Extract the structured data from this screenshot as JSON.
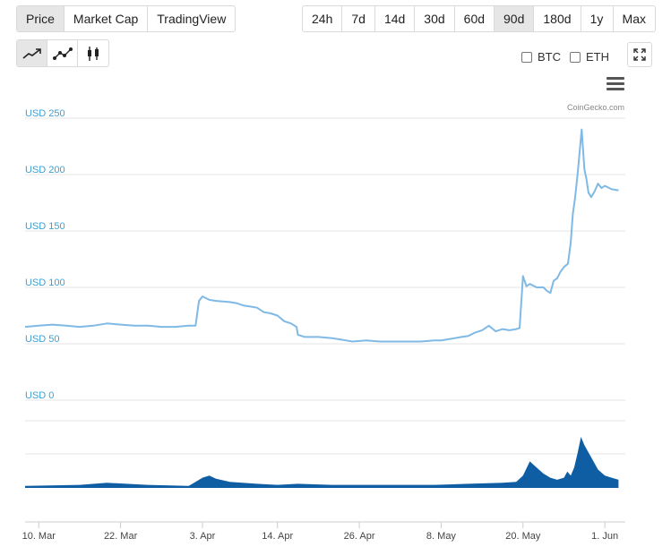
{
  "view_tabs": [
    {
      "label": "Price",
      "active": true
    },
    {
      "label": "Market Cap",
      "active": false
    },
    {
      "label": "TradingView",
      "active": false
    }
  ],
  "range_tabs": [
    {
      "label": "24h",
      "active": false
    },
    {
      "label": "7d",
      "active": false
    },
    {
      "label": "14d",
      "active": false
    },
    {
      "label": "30d",
      "active": false
    },
    {
      "label": "60d",
      "active": false
    },
    {
      "label": "90d",
      "active": true
    },
    {
      "label": "180d",
      "active": false
    },
    {
      "label": "1y",
      "active": false
    },
    {
      "label": "Max",
      "active": false
    }
  ],
  "chart_types": [
    {
      "icon": "line-chart-icon",
      "active": true
    },
    {
      "icon": "scatter-line-chart-icon",
      "active": false
    },
    {
      "icon": "candlestick-chart-icon",
      "active": false
    }
  ],
  "compare": {
    "btc_label": "BTC",
    "eth_label": "ETH"
  },
  "icons": {
    "expand": "expand-icon",
    "menu": "menu-icon"
  },
  "credits": "CoinGecko.com",
  "colors": {
    "price_line": "#7fb9e6",
    "volume": "#0f5ea4",
    "axis_label": "#3aa1d6"
  },
  "chart_data": {
    "type": "line",
    "y_axis": {
      "ticks": [
        0,
        50,
        100,
        150,
        200,
        250
      ],
      "tick_labels": [
        "USD 0",
        "USD 50",
        "USD 100",
        "USD 150",
        "USD 200",
        "USD 250"
      ],
      "range": [
        0,
        250
      ]
    },
    "x_ticks": [
      "10. Mar",
      "22. Mar",
      "3. Apr",
      "14. Apr",
      "26. Apr",
      "8. May",
      "20. May",
      "1. Jun"
    ],
    "x_tick_days": [
      2,
      14,
      26,
      37,
      49,
      61,
      73,
      85
    ],
    "x_range_days": [
      0,
      88
    ],
    "series": [
      {
        "values": [
          [
            0,
            65
          ],
          [
            2,
            66
          ],
          [
            4,
            67
          ],
          [
            6,
            66
          ],
          [
            8,
            65
          ],
          [
            10,
            66
          ],
          [
            12,
            68
          ],
          [
            14,
            67
          ],
          [
            16,
            66
          ],
          [
            18,
            66
          ],
          [
            20,
            65
          ],
          [
            22,
            65
          ],
          [
            24,
            66
          ],
          [
            25,
            66
          ],
          [
            25.5,
            88
          ],
          [
            26,
            92
          ],
          [
            27,
            89
          ],
          [
            28,
            88
          ],
          [
            30,
            87
          ],
          [
            31,
            86
          ],
          [
            32,
            84
          ],
          [
            33,
            83
          ],
          [
            34,
            82
          ],
          [
            35,
            78
          ],
          [
            36,
            77
          ],
          [
            37,
            75
          ],
          [
            38,
            70
          ],
          [
            39,
            68
          ],
          [
            39.8,
            65
          ],
          [
            40,
            58
          ],
          [
            41,
            56
          ],
          [
            43,
            56
          ],
          [
            45,
            55
          ],
          [
            47,
            53
          ],
          [
            48,
            52
          ],
          [
            50,
            53
          ],
          [
            52,
            52
          ],
          [
            54,
            52
          ],
          [
            56,
            52
          ],
          [
            58,
            52
          ],
          [
            60,
            53
          ],
          [
            61,
            53
          ],
          [
            62,
            54
          ],
          [
            64,
            56
          ],
          [
            65,
            57
          ],
          [
            66,
            60
          ],
          [
            67,
            62
          ],
          [
            68,
            66
          ],
          [
            69,
            61
          ],
          [
            70,
            63
          ],
          [
            71,
            62
          ],
          [
            72,
            63
          ],
          [
            72.5,
            64
          ],
          [
            73,
            110
          ],
          [
            73.5,
            101
          ],
          [
            74,
            103
          ],
          [
            75,
            100
          ],
          [
            76,
            100
          ],
          [
            76.5,
            97
          ],
          [
            77,
            95
          ],
          [
            77.5,
            106
          ],
          [
            78,
            108
          ],
          [
            78.5,
            114
          ],
          [
            79,
            118
          ],
          [
            79.6,
            121
          ],
          [
            80,
            140
          ],
          [
            80.3,
            165
          ],
          [
            80.6,
            178
          ],
          [
            81,
            200
          ],
          [
            81.3,
            220
          ],
          [
            81.6,
            240
          ],
          [
            82,
            205
          ],
          [
            82.3,
            196
          ],
          [
            82.6,
            184
          ],
          [
            83,
            180
          ],
          [
            83.5,
            185
          ],
          [
            84,
            192
          ],
          [
            84.5,
            188
          ],
          [
            85,
            190
          ],
          [
            86,
            187
          ],
          [
            87,
            186
          ]
        ]
      },
      {
        "name": "volume",
        "values": [
          [
            0,
            2
          ],
          [
            8,
            3
          ],
          [
            12,
            5
          ],
          [
            18,
            3
          ],
          [
            24,
            2
          ],
          [
            25,
            6
          ],
          [
            26,
            10
          ],
          [
            27,
            12
          ],
          [
            28,
            9
          ],
          [
            30,
            6
          ],
          [
            34,
            4
          ],
          [
            37,
            3
          ],
          [
            40,
            4
          ],
          [
            45,
            3
          ],
          [
            50,
            3
          ],
          [
            55,
            3
          ],
          [
            60,
            3
          ],
          [
            65,
            4
          ],
          [
            70,
            5
          ],
          [
            72,
            6
          ],
          [
            73,
            12
          ],
          [
            74,
            26
          ],
          [
            75,
            20
          ],
          [
            76,
            14
          ],
          [
            77,
            10
          ],
          [
            78,
            8
          ],
          [
            79,
            10
          ],
          [
            79.5,
            16
          ],
          [
            80,
            12
          ],
          [
            80.5,
            20
          ],
          [
            81,
            34
          ],
          [
            81.5,
            50
          ],
          [
            82,
            42
          ],
          [
            82.5,
            36
          ],
          [
            83,
            30
          ],
          [
            83.5,
            24
          ],
          [
            84,
            18
          ],
          [
            85,
            12
          ],
          [
            86,
            10
          ],
          [
            87,
            8
          ]
        ]
      }
    ]
  }
}
